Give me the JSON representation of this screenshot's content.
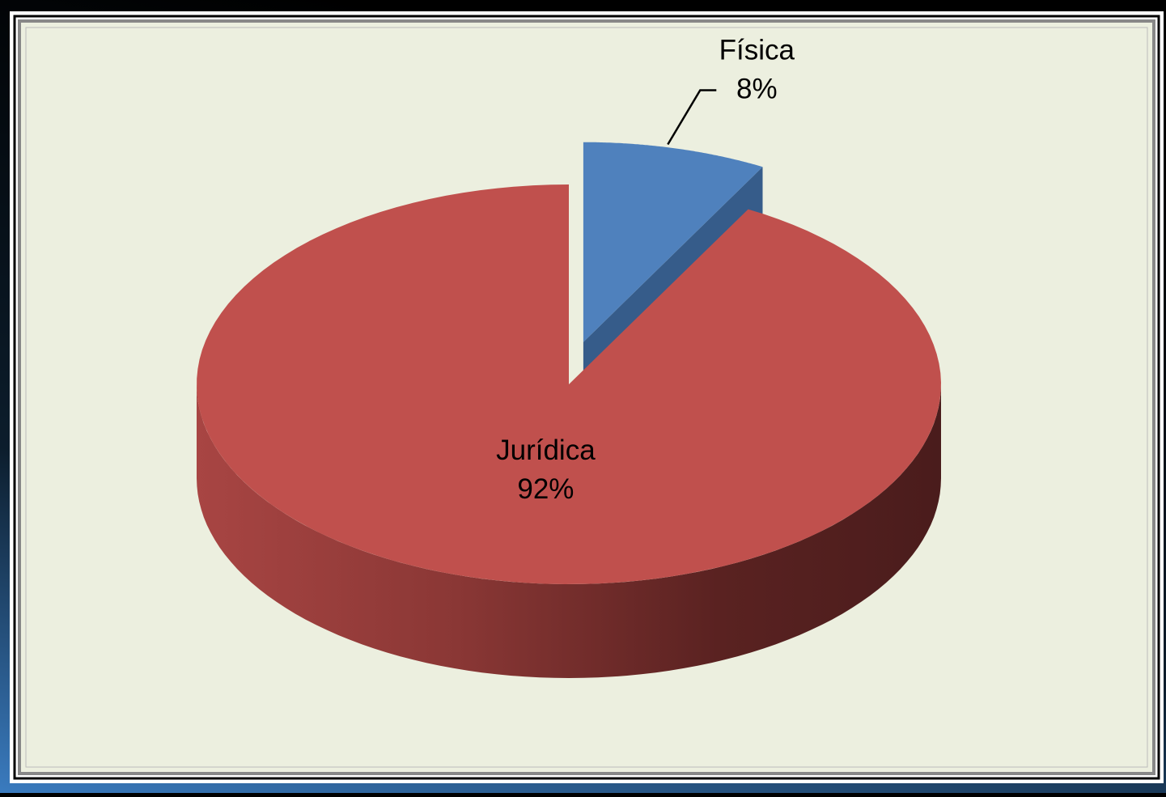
{
  "chart_data": {
    "type": "pie",
    "categories": [
      "Física",
      "Jurídica"
    ],
    "values": [
      8,
      92
    ],
    "value_labels": [
      "8%",
      "92%"
    ],
    "colors": [
      "#4f81bd",
      "#c0504d"
    ],
    "side_colors": [
      "#365c8a",
      "#8a3533"
    ],
    "exploded": [
      true,
      false
    ]
  }
}
